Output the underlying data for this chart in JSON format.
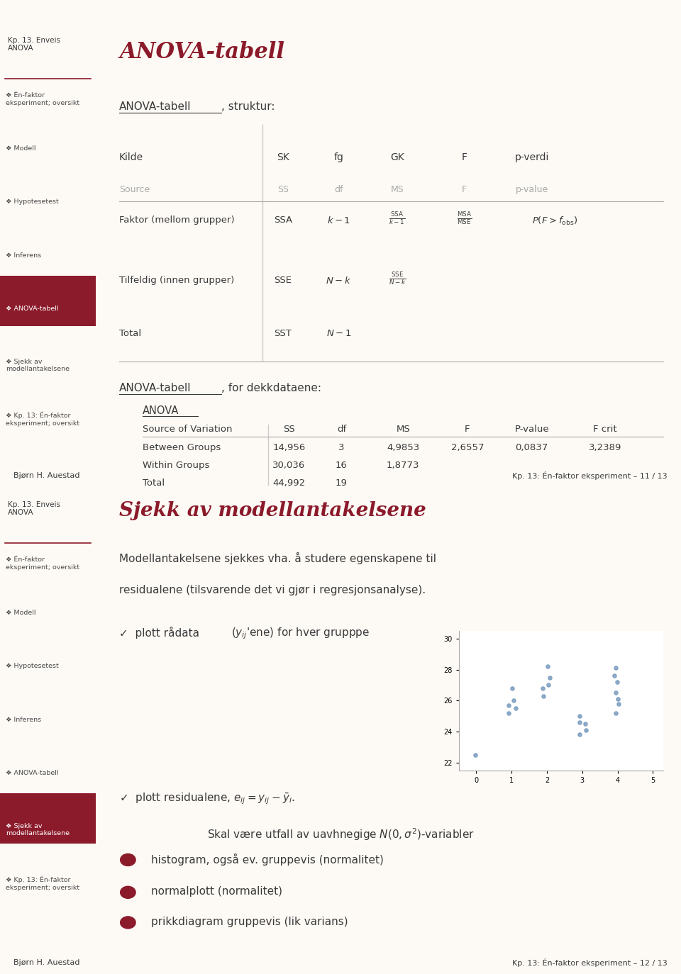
{
  "page1": {
    "title": "ANOVA-tabell",
    "bg_color": "#FDFAF5",
    "sidebar_bg": "#F5EDE0",
    "sidebar_title": "Kp. 13. Enveis\nANOVA",
    "sidebar_items": [
      [
        "❖ Én-faktor\neksperiment; oversikt",
        false
      ],
      [
        "❖ Modell",
        false
      ],
      [
        "❖ Hypotesetest",
        false
      ],
      [
        "❖ Inferens",
        false
      ],
      [
        "❖ ANOVA-tabell",
        true
      ],
      [
        "❖ Sjekk av\nmodellantakelsene",
        false
      ],
      [
        "❖ Kp. 13: Én-faktor\neksperiment; oversikt",
        false
      ]
    ],
    "footer_left": "Bjørn H. Auestad",
    "footer_right": "Kp. 13: Én-faktor eksperiment – 11 / 13",
    "footer_bg": "#D4C5A9"
  },
  "page2": {
    "title": "Sjekk av modellantakelsene",
    "bg_color": "#FDFAF5",
    "sidebar_bg": "#F5EDE0",
    "sidebar_title": "Kp. 13. Enveis\nANOVA",
    "sidebar_items": [
      [
        "❖ Én-faktor\neksperiment; oversikt",
        false
      ],
      [
        "❖ Modell",
        false
      ],
      [
        "❖ Hypotesetest",
        false
      ],
      [
        "❖ Inferens",
        false
      ],
      [
        "❖ ANOVA-tabell",
        false
      ],
      [
        "❖ Sjekk av\nmodellantakelsene",
        true
      ],
      [
        "❖ Kp. 13: Én-faktor\neksperiment; oversikt",
        false
      ]
    ],
    "footer_left": "Bjørn H. Auestad",
    "footer_right": "Kp. 13: Én-faktor eksperiment – 12 / 13",
    "footer_bg": "#D4C5A9"
  },
  "title_color": "#8B1A2A",
  "sidebar_highlight_bg": "#8B1A2A",
  "sidebar_highlight_color": "#FFFFFF",
  "sidebar_text_color": "#4A4A4A",
  "text_color": "#3A3A3A",
  "underline_color": "#8B1A2A"
}
